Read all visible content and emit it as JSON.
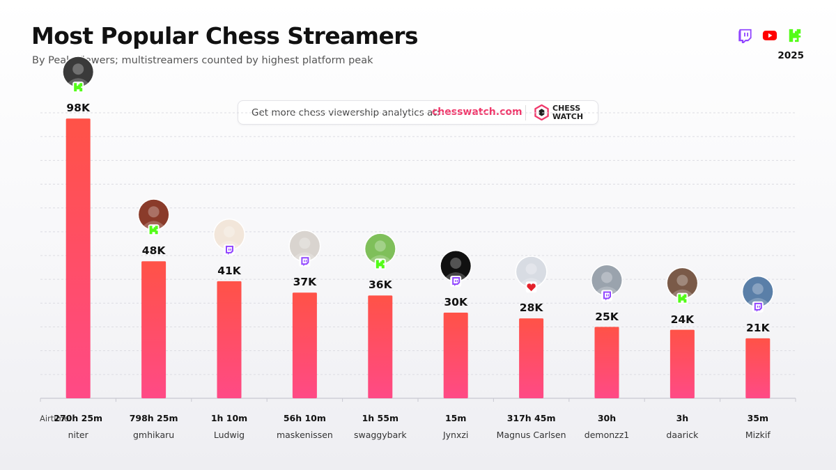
{
  "header": {
    "title": "Most Popular Chess Streamers",
    "subtitle": "By Peak Viewers; multistreamers counted by highest platform peak",
    "year": "2025",
    "platforms": [
      "twitch-icon",
      "youtube-icon",
      "kick-icon"
    ]
  },
  "banner": {
    "text": "Get more chess viewership analytics at:",
    "link": "chesswatch.com",
    "brand_line1": "CHESS",
    "brand_line2": "WATCH"
  },
  "colors": {
    "bar_top": "#ff5247",
    "bar_bottom": "#ff4a86",
    "twitch": "#9146ff",
    "youtube": "#ff0000",
    "kick": "#53fc18",
    "link": "#f0386b"
  },
  "chart_data": {
    "type": "bar",
    "title": "Most Popular Chess Streamers",
    "subtitle": "By Peak Viewers; multistreamers counted by highest platform peak",
    "categories": [
      "niter",
      "gmhikaru",
      "Ludwig",
      "maskenissen",
      "swaggybark",
      "Jynxzi",
      "Magnus Carlsen",
      "demonzz1",
      "daarick",
      "Mizkif"
    ],
    "values": [
      98000,
      48000,
      41000,
      37000,
      36000,
      30000,
      28000,
      25000,
      24000,
      21000
    ],
    "value_labels": [
      "98K",
      "48K",
      "41K",
      "37K",
      "36K",
      "30K",
      "28K",
      "25K",
      "24K",
      "21K"
    ],
    "platforms": [
      "kick",
      "kick",
      "twitch",
      "twitch",
      "kick",
      "twitch",
      "chessbase",
      "twitch",
      "kick",
      "twitch"
    ],
    "airtime_label": "Airtime:",
    "airtime": [
      "270h 25m",
      "798h 25m",
      "1h 10m",
      "56h 10m",
      "1h 55m",
      "15m",
      "317h 45m",
      "30h",
      "3h",
      "35m"
    ],
    "ylim": [
      0,
      100000
    ],
    "grid": true
  }
}
